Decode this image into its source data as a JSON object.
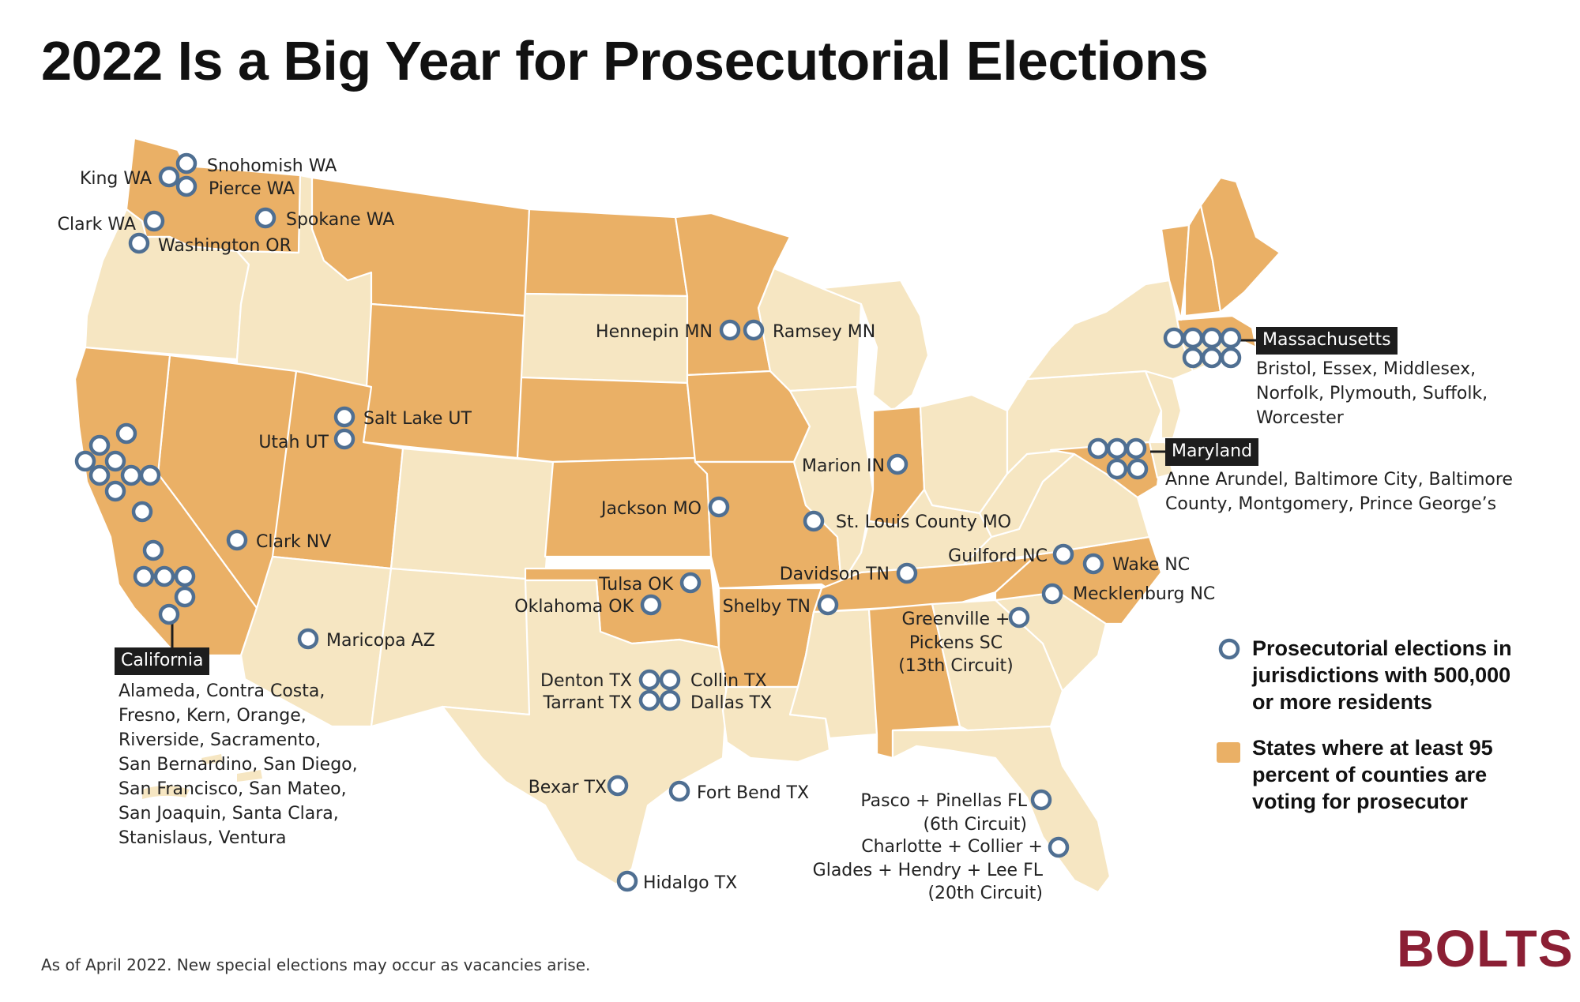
{
  "title": "2022 Is a Big Year for Prosecutorial Elections",
  "footnote": "As of April 2022. New special elections may occur as vacancies arise.",
  "brand": "BOLTS",
  "colors": {
    "voting_state": "#eab066",
    "other_state": "#f6e6c2",
    "marker_stroke": "#4f6f92",
    "brand": "#8b1f34"
  },
  "legend": {
    "marker_text": [
      "Prosecutorial elections in",
      "jurisdictions with 500,000",
      "or more residents"
    ],
    "state_text": [
      "States where at least 95",
      "percent of counties are",
      "voting for prosecutor"
    ]
  },
  "states": {
    "voting": [
      "WA",
      "MT",
      "ND",
      "MN",
      "CA",
      "NV",
      "UT",
      "WY",
      "NE",
      "IA",
      "KS",
      "MO",
      "IN",
      "OK",
      "AR",
      "TN",
      "NC",
      "AL",
      "VT",
      "NH",
      "ME",
      "MA",
      "MD"
    ],
    "other": [
      "OR",
      "ID",
      "SD",
      "WI",
      "MI",
      "IL",
      "OH",
      "KY",
      "WV",
      "VA",
      "PA",
      "NY",
      "NJ",
      "CT",
      "RI",
      "DE",
      "AZ",
      "NM",
      "CO",
      "TX",
      "LA",
      "MS",
      "GA",
      "SC",
      "FL"
    ]
  },
  "labels": {
    "snohomish": "Snohomish WA",
    "king": "King WA",
    "pierce": "Pierce WA",
    "clark_wa": "Clark WA",
    "spokane": "Spokane WA",
    "washington_or": "Washington OR",
    "salt_lake": "Salt Lake UT",
    "utah": "Utah UT",
    "clark_nv": "Clark NV",
    "maricopa": "Maricopa AZ",
    "hennepin": "Hennepin MN",
    "ramsey": "Ramsey MN",
    "marion": "Marion IN",
    "jackson": "Jackson MO",
    "st_louis": "St. Louis County MO",
    "guilford": "Guilford NC",
    "wake": "Wake NC",
    "mecklenburg": "Mecklenburg NC",
    "davidson": "Davidson TN",
    "shelby": "Shelby TN",
    "greenville": [
      "Greenville +",
      "Pickens SC",
      "(13th Circuit)"
    ],
    "tulsa": "Tulsa OK",
    "oklahoma": "Oklahoma OK",
    "denton": "Denton TX",
    "collin": "Collin TX",
    "tarrant": "Tarrant TX",
    "dallas": "Dallas TX",
    "bexar": "Bexar TX",
    "fort_bend": "Fort Bend TX",
    "hidalgo": "Hidalgo TX",
    "pasco": [
      "Pasco + Pinellas FL",
      "(6th Circuit)"
    ],
    "charlotte": [
      "Charlotte + Collier +",
      "Glades + Hendry + Lee FL",
      "(20th Circuit)"
    ]
  },
  "groups": {
    "massachusetts": {
      "tag": "Massachusetts",
      "counties": [
        "Bristol, Essex, Middlesex,",
        "Norfolk, Plymouth, Suffolk,",
        "Worcester"
      ]
    },
    "maryland": {
      "tag": "Maryland",
      "counties": [
        "Anne Arundel, Baltimore City, Baltimore",
        "County, Montgomery, Prince George’s"
      ]
    },
    "california": {
      "tag": "California",
      "counties": [
        "Alameda, Contra Costa,",
        "Fresno, Kern, Orange,",
        "Riverside, Sacramento,",
        "San Bernardino, San Diego,",
        "San Francisco, San Mateo,",
        "San Joaquin, Santa Clara,",
        "Stanislaus, Ventura"
      ]
    }
  }
}
